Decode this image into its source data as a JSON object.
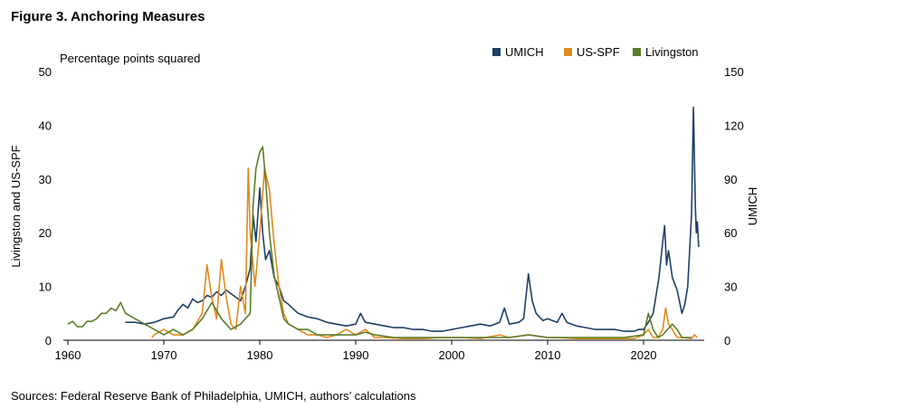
{
  "figure_title": "Figure 3. Anchoring Measures",
  "source_note": "Sources: Federal Reserve Bank of Philadelphia, UMICH, authors’ calculations",
  "chart_data": {
    "type": "line",
    "title": "",
    "units_label": "Percentage points squared",
    "ylabel_left": "Livingston and US-SPF",
    "ylabel_right": "UMICH",
    "ylim_left": [
      0,
      50
    ],
    "ylim_right": [
      0,
      150
    ],
    "xlim": [
      1960,
      2027
    ],
    "x_ticks": [
      "1960",
      "1970",
      "1980",
      "1990",
      "2000",
      "2010",
      "2020"
    ],
    "y_ticks_left": [
      "0",
      "10",
      "20",
      "30",
      "40",
      "50"
    ],
    "y_ticks_right": [
      "0",
      "30",
      "60",
      "90",
      "120",
      "150"
    ],
    "legend_position": "top-right",
    "series": [
      {
        "name": "UMICH",
        "axis": "right",
        "color": "#1f3f66",
        "x": [
          1966,
          1967,
          1968,
          1969,
          1970,
          1971,
          1971.5,
          1972,
          1972.5,
          1973,
          1973.5,
          1974,
          1974.5,
          1975,
          1975.5,
          1976,
          1976.5,
          1977,
          1977.5,
          1978,
          1978.5,
          1979,
          1979.3,
          1979.6,
          1980,
          1980.3,
          1980.6,
          1981,
          1981.5,
          1982,
          1982.5,
          1983,
          1984,
          1985,
          1986,
          1987,
          1988,
          1989,
          1990,
          1990.5,
          1991,
          1992,
          1993,
          1994,
          1995,
          1996,
          1997,
          1998,
          1999,
          2000,
          2001,
          2002,
          2003,
          2004,
          2005,
          2005.5,
          2006,
          2007,
          2007.5,
          2008,
          2008.4,
          2008.8,
          2009.5,
          2010,
          2011,
          2011.5,
          2012,
          2013,
          2014,
          2015,
          2016,
          2017,
          2018,
          2019,
          2019.5,
          2020,
          2020.5,
          2021,
          2021.3,
          2021.6,
          2022,
          2022.2,
          2022.4,
          2022.6,
          2023,
          2023.5,
          2024,
          2024.3,
          2024.6,
          2025,
          2025.2,
          2025.4,
          2025.5,
          2025.6,
          2025.75
        ],
        "values": [
          10,
          10,
          9,
          10,
          12,
          13,
          17,
          20,
          18,
          23,
          21,
          22,
          25,
          24,
          27,
          25,
          28,
          26,
          24,
          22,
          30,
          40,
          70,
          55,
          85,
          60,
          45,
          50,
          35,
          30,
          22,
          20,
          15,
          13,
          12,
          10,
          9,
          8,
          9,
          15,
          10,
          9,
          8,
          7,
          7,
          6,
          6,
          5,
          5,
          6,
          7,
          8,
          9,
          8,
          10,
          18,
          9,
          10,
          12,
          37,
          22,
          15,
          11,
          12,
          10,
          15,
          10,
          8,
          7,
          6,
          6,
          6,
          5,
          5,
          6,
          6,
          10,
          15,
          25,
          35,
          55,
          64,
          42,
          50,
          35,
          28,
          15,
          20,
          30,
          70,
          130,
          75,
          60,
          66,
          52
        ]
      },
      {
        "name": "US-SPF",
        "axis": "left",
        "color": "#e08a1e",
        "x": [
          1968.75,
          1969,
          1970,
          1971,
          1972,
          1973,
          1974,
          1974.5,
          1975,
          1975.5,
          1976,
          1976.5,
          1977,
          1977.5,
          1978,
          1978.5,
          1978.8,
          1979,
          1979.5,
          1980,
          1980.5,
          1981,
          1981.5,
          1982,
          1982.5,
          1983,
          1984,
          1985,
          1986,
          1987,
          1988,
          1989,
          1990,
          1991,
          1992,
          1993,
          1995,
          1997,
          1999,
          2001,
          2003,
          2005,
          2006,
          2008,
          2010,
          2011,
          2013,
          2015,
          2017,
          2019,
          2020,
          2020.5,
          2021,
          2021.5,
          2022,
          2022.3,
          2022.6,
          2023,
          2023.5,
          2024,
          2025,
          2025.3,
          2025.6
        ],
        "values": [
          0.5,
          1,
          2,
          1,
          1,
          2,
          5,
          14,
          8,
          4,
          15,
          8,
          3,
          2,
          10,
          5,
          32,
          20,
          10,
          20,
          32,
          28,
          18,
          10,
          5,
          3,
          2,
          1,
          1,
          0.5,
          1,
          2,
          1,
          2,
          0.5,
          0.5,
          0.3,
          0.3,
          0.5,
          0.5,
          0.3,
          1,
          0.5,
          1,
          0.5,
          0.5,
          0.3,
          0.3,
          0.3,
          0.3,
          1,
          2,
          0.5,
          0.5,
          2,
          6,
          3,
          2,
          0.5,
          0.5,
          0.3,
          1,
          0.5
        ]
      },
      {
        "name": "Livingston",
        "axis": "left",
        "color": "#5a7d2a",
        "x": [
          1960,
          1960.5,
          1961,
          1961.5,
          1962,
          1962.5,
          1963,
          1963.5,
          1964,
          1964.5,
          1965,
          1965.5,
          1966,
          1966.5,
          1967,
          1967.5,
          1968,
          1969,
          1970,
          1971,
          1972,
          1973,
          1974,
          1975,
          1975.5,
          1976,
          1976.5,
          1977,
          1977.5,
          1978,
          1978.5,
          1979,
          1979.3,
          1979.6,
          1980,
          1980.3,
          1980.6,
          1981,
          1981.5,
          1982,
          1982.5,
          1983,
          1984,
          1985,
          1986,
          1987,
          1988,
          1989,
          1990,
          1991,
          1992,
          1994,
          1996,
          1998,
          2000,
          2002,
          2004,
          2006,
          2008,
          2010,
          2012,
          2014,
          2016,
          2018,
          2020,
          2020.5,
          2021,
          2021.5,
          2022,
          2022.5,
          2023,
          2023.5,
          2024,
          2025
        ],
        "values": [
          3,
          3.5,
          2.5,
          2.5,
          3.5,
          3.5,
          4,
          5,
          5,
          6,
          5.5,
          7,
          5,
          4.5,
          4,
          3.5,
          3,
          2,
          1,
          2,
          1,
          2,
          4,
          7,
          5.5,
          4,
          3,
          2,
          2.5,
          3,
          4,
          5,
          25,
          32,
          35,
          36,
          30,
          20,
          12,
          8,
          4,
          3,
          2,
          2,
          1,
          1,
          1,
          1,
          1,
          1.5,
          1,
          0.5,
          0.5,
          0.5,
          0.5,
          0.5,
          0.5,
          0.5,
          1,
          0.5,
          0.5,
          0.5,
          0.5,
          0.5,
          1,
          5,
          2,
          0.5,
          1,
          2,
          3,
          2,
          0.5,
          0.5
        ]
      }
    ]
  }
}
